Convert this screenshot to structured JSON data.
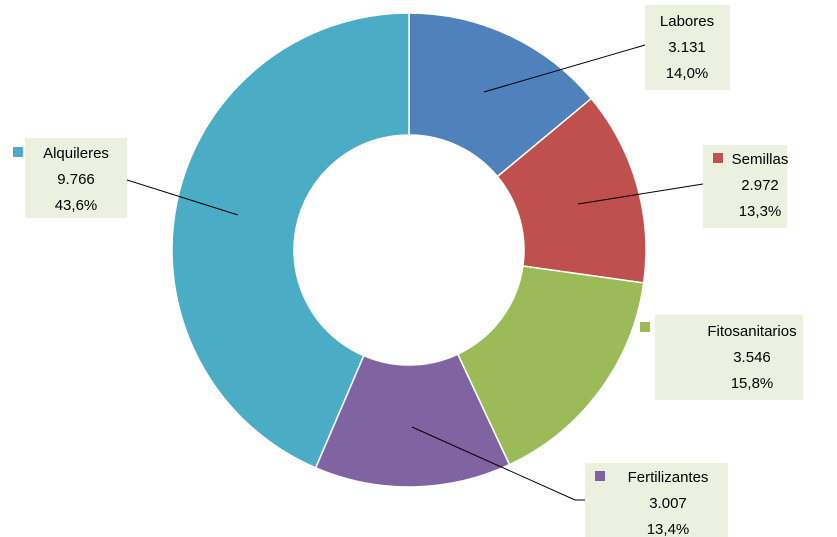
{
  "chart_data": {
    "type": "donut",
    "categories": [
      "Labores",
      "Semillas",
      "Fitosanitarios",
      "Fertilizantes",
      "Alquileres"
    ],
    "values": [
      3131,
      2972,
      3546,
      3007,
      9766
    ],
    "value_labels": [
      "3.131",
      "2.972",
      "3.546",
      "3.007",
      "9.766"
    ],
    "percent_labels": [
      "14,0%",
      "13,3%",
      "15,8%",
      "13,4%",
      "43,6%"
    ],
    "colors": [
      "#4f81bd",
      "#c0504d",
      "#9bbb59",
      "#8064a2",
      "#4bacc6"
    ]
  }
}
